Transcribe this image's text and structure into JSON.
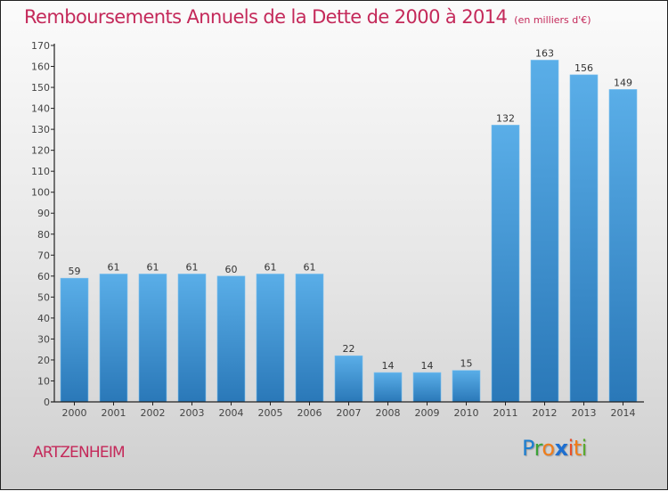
{
  "header": {
    "title": "Remboursements Annuels de la Dette de 2000 à 2014",
    "unit": "(en milliers d'€)"
  },
  "footer": {
    "town": "ARTZENHEIM",
    "logo_letters": [
      {
        "ch": "P",
        "color": "#1e7fd0"
      },
      {
        "ch": "r",
        "color": "#3aa336"
      },
      {
        "ch": "o",
        "color": "#f07d1a"
      },
      {
        "ch": "x",
        "color": "#1e6fd0"
      },
      {
        "ch": "i",
        "color": "#e8502a"
      },
      {
        "ch": "t",
        "color": "#f07d1a"
      },
      {
        "ch": "i",
        "color": "#5aaa2e"
      }
    ]
  },
  "colors": {
    "title": "#c4295a",
    "bar_top": "#5aaee8",
    "bar_bottom": "#2a78b8"
  },
  "chart_data": {
    "type": "bar",
    "title": "Remboursements Annuels de la Dette de 2000 à 2014",
    "subtitle": "(en milliers d'€)",
    "xlabel": "",
    "ylabel": "",
    "categories": [
      "2000",
      "2001",
      "2002",
      "2003",
      "2004",
      "2005",
      "2006",
      "2007",
      "2008",
      "2009",
      "2010",
      "2011",
      "2012",
      "2013",
      "2014"
    ],
    "values": [
      59,
      61,
      61,
      61,
      60,
      61,
      61,
      22,
      14,
      14,
      15,
      132,
      163,
      156,
      149
    ],
    "ylim": [
      0,
      170
    ],
    "yticks": [
      0,
      10,
      20,
      30,
      40,
      50,
      60,
      70,
      80,
      90,
      100,
      110,
      120,
      130,
      140,
      150,
      160,
      170
    ],
    "grid": false,
    "legend": "none"
  }
}
